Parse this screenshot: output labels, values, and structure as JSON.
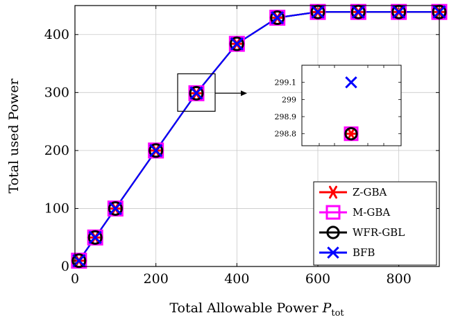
{
  "chart_data": {
    "type": "line",
    "xlabel": "Total Allowable Power",
    "xlabel_symbol": "P",
    "xlabel_subscript": "tot",
    "ylabel": "Total used Power",
    "xlim": [
      0,
      900
    ],
    "ylim": [
      0,
      450
    ],
    "x_ticks": [
      0,
      200,
      400,
      600,
      800
    ],
    "y_ticks": [
      0,
      100,
      200,
      300,
      400
    ],
    "grid": true,
    "legend_position": "bottom-right",
    "x": [
      10,
      50,
      100,
      200,
      300,
      400,
      500,
      600,
      700,
      800,
      900
    ],
    "series": [
      {
        "name": "Z-GBA",
        "color": "#ff0000",
        "marker": "asterisk",
        "values": [
          10,
          50,
          100,
          200,
          298.8,
          384,
          429,
          439,
          439,
          439,
          439
        ]
      },
      {
        "name": "M-GBA",
        "color": "#ff00ff",
        "marker": "square",
        "values": [
          10,
          50,
          100,
          200,
          298.8,
          384,
          429,
          439,
          439,
          439,
          439
        ]
      },
      {
        "name": "WFR-GBL",
        "color": "#000000",
        "marker": "circle",
        "values": [
          10,
          50,
          100,
          200,
          298.8,
          384,
          429,
          439,
          439,
          439,
          439
        ]
      },
      {
        "name": "BFB",
        "color": "#0000ff",
        "marker": "x",
        "values": [
          10,
          50,
          100,
          200,
          299.1,
          384,
          429,
          439,
          439,
          439,
          439
        ]
      }
    ],
    "inset": {
      "x_center": 300,
      "ylim": [
        298.73,
        299.2
      ],
      "y_ticks": [
        298.8,
        298.9,
        299,
        299.1
      ],
      "y_tick_labels": [
        "298.8",
        "298.9",
        "299",
        "299.1"
      ],
      "points": [
        {
          "series": "Z-GBA",
          "value": 298.8
        },
        {
          "series": "M-GBA",
          "value": 298.8
        },
        {
          "series": "WFR-GBL",
          "value": 298.8
        },
        {
          "series": "BFB",
          "value": 299.1
        }
      ]
    }
  }
}
